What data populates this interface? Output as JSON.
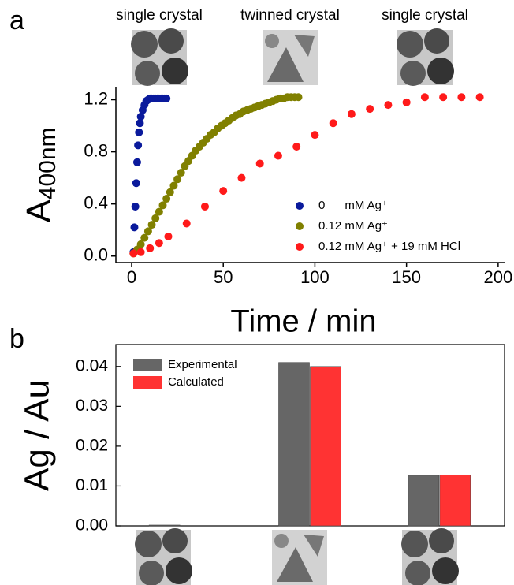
{
  "chart_data": [
    {
      "type": "scatter",
      "panel": "a",
      "top_labels": [
        "single crystal",
        "twinned crystal",
        "single crystal"
      ],
      "xlabel": "Time / min",
      "ylabel": "A",
      "ylabel_sub": "400nm",
      "xlim": [
        -8.6,
        203.5
      ],
      "xticks": [
        0,
        50,
        100,
        150,
        200
      ],
      "ylim": [
        -0.05,
        1.3
      ],
      "yticks": [
        {
          "value": 0,
          "label": "0.0"
        },
        0.4,
        0.8,
        1.2
      ],
      "legend": "lower right",
      "series": [
        {
          "name": "0      mM Ag⁺",
          "color": "#0a1a9c",
          "x": [
            1,
            1.5,
            2,
            2.5,
            3,
            3.5,
            4,
            4.5,
            5,
            6,
            7,
            8,
            9,
            10,
            11,
            12,
            13,
            14,
            15,
            16,
            17,
            18,
            19
          ],
          "values": [
            0.03,
            0.22,
            0.38,
            0.56,
            0.72,
            0.85,
            0.95,
            1.02,
            1.07,
            1.12,
            1.16,
            1.19,
            1.2,
            1.21,
            1.21,
            1.21,
            1.21,
            1.21,
            1.21,
            1.21,
            1.21,
            1.21,
            1.21
          ]
        },
        {
          "name": "0.12 mM Ag⁺",
          "color": "#808000",
          "x": [
            1,
            3,
            5,
            7,
            9,
            11,
            13,
            15,
            17,
            19,
            21,
            23,
            25,
            27,
            29,
            31,
            33,
            35,
            37,
            39,
            41,
            43,
            45,
            47,
            49,
            51,
            53,
            55,
            57,
            59,
            61,
            63,
            65,
            67,
            69,
            71,
            73,
            75,
            77,
            79,
            81,
            83,
            85,
            87,
            89,
            91
          ],
          "values": [
            0.02,
            0.05,
            0.09,
            0.14,
            0.19,
            0.24,
            0.29,
            0.34,
            0.39,
            0.44,
            0.49,
            0.54,
            0.59,
            0.64,
            0.69,
            0.73,
            0.77,
            0.81,
            0.84,
            0.87,
            0.9,
            0.93,
            0.95,
            0.98,
            1.0,
            1.02,
            1.04,
            1.06,
            1.08,
            1.09,
            1.11,
            1.12,
            1.13,
            1.14,
            1.15,
            1.16,
            1.17,
            1.18,
            1.19,
            1.2,
            1.21,
            1.21,
            1.22,
            1.22,
            1.22,
            1.22
          ]
        },
        {
          "name": "0.12 mM Ag⁺ + 19 mM HCl",
          "color": "#ff1a1a",
          "x": [
            1,
            5,
            10,
            15,
            20,
            30,
            40,
            50,
            60,
            70,
            80,
            90,
            100,
            110,
            120,
            130,
            140,
            150,
            160,
            170,
            180,
            190
          ],
          "values": [
            0.02,
            0.03,
            0.06,
            0.1,
            0.15,
            0.25,
            0.38,
            0.5,
            0.6,
            0.71,
            0.77,
            0.84,
            0.93,
            1.02,
            1.09,
            1.13,
            1.16,
            1.18,
            1.22,
            1.22,
            1.22,
            1.22
          ]
        }
      ]
    },
    {
      "type": "bar",
      "panel": "b",
      "ylabel": "Ag / Au",
      "categories": [
        null,
        null,
        null
      ],
      "ylim": [
        0,
        0.0455
      ],
      "yticks": [
        {
          "value": 0,
          "label": "0.00"
        },
        {
          "value": 0.01,
          "label": "0.01"
        },
        {
          "value": 0.02,
          "label": "0.02"
        },
        {
          "value": 0.03,
          "label": "0.03"
        },
        {
          "value": 0.04,
          "label": "0.04"
        }
      ],
      "legend": "upper left",
      "series": [
        {
          "name": "Experimental",
          "color": "#666666",
          "values": [
            0.0002,
            0.041,
            0.0127
          ]
        },
        {
          "name": "Calculated",
          "color": "#ff3333",
          "values": [
            null,
            0.04,
            0.0128
          ]
        }
      ]
    }
  ]
}
